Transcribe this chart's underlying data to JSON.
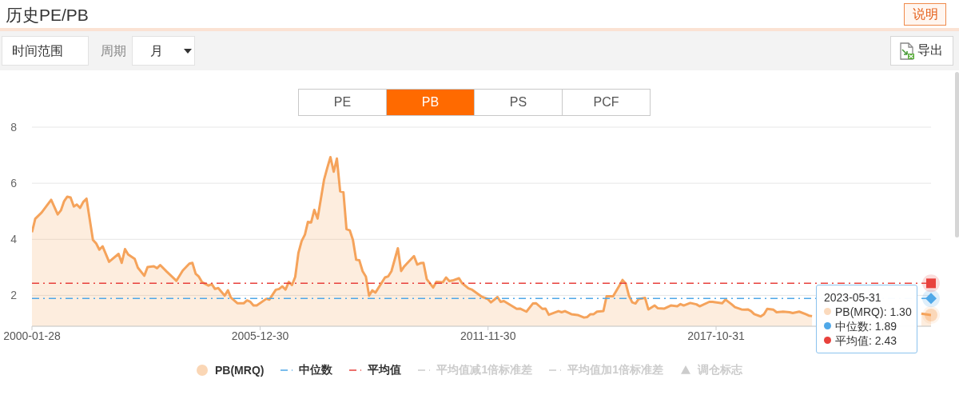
{
  "chart_data": {
    "type": "area",
    "title": "历史PE/PB",
    "series": [
      {
        "name": "PB(MRQ)",
        "color": "#f5a35b",
        "x": [
          "2000-01-28",
          "2000-02-28",
          "2000-03-28",
          "2000-04-28",
          "2000-07-28",
          "2000-09-28",
          "2000-10-28",
          "2000-11-28",
          "2000-12-28",
          "2001-01-28",
          "2001-02-28",
          "2001-03-28",
          "2001-04-28",
          "2001-05-28",
          "2001-06-28",
          "2001-08-28",
          "2001-09-28",
          "2001-10-28",
          "2001-11-28",
          "2002-01-28",
          "2002-04-28",
          "2002-05-28",
          "2002-06-28",
          "2002-07-28",
          "2002-09-28",
          "2002-10-28",
          "2002-12-28",
          "2003-01-28",
          "2003-03-28",
          "2003-04-28",
          "2003-05-28",
          "2003-07-28",
          "2003-10-28",
          "2003-12-28",
          "2004-02-28",
          "2004-03-28",
          "2004-04-28",
          "2004-05-28",
          "2004-06-28",
          "2004-08-28",
          "2004-09-28",
          "2004-10-28",
          "2004-11-28",
          "2005-01-28",
          "2005-02-28",
          "2005-03-28",
          "2005-05-28",
          "2005-07-28",
          "2005-08-28",
          "2005-09-28",
          "2005-10-28",
          "2005-11-28",
          "2006-02-28",
          "2006-03-28",
          "2006-05-28",
          "2006-06-28",
          "2006-07-28",
          "2006-08-28",
          "2006-09-28",
          "2006-10-28",
          "2006-11-28",
          "2006-12-28",
          "2007-01-28",
          "2007-02-28",
          "2007-03-28",
          "2007-04-28",
          "2007-05-28",
          "2007-06-28",
          "2007-08-28",
          "2007-09-28",
          "2007-10-28",
          "2007-11-28",
          "2007-12-28",
          "2008-01-28",
          "2008-02-28",
          "2008-03-28",
          "2008-04-28",
          "2008-05-28",
          "2008-06-28",
          "2008-07-28",
          "2008-08-28",
          "2008-09-28",
          "2008-10-28",
          "2008-11-28",
          "2008-12-28",
          "2009-03-28",
          "2009-04-28",
          "2009-05-28",
          "2009-07-28",
          "2009-08-28",
          "2009-09-28",
          "2009-10-28",
          "2009-12-28",
          "2010-01-28",
          "2010-02-28",
          "2010-03-28",
          "2010-04-28",
          "2010-06-28",
          "2010-07-28",
          "2010-09-28",
          "2010-10-28",
          "2010-11-28",
          "2010-12-28",
          "2011-02-28",
          "2011-03-28",
          "2011-05-28",
          "2011-06-28",
          "2011-09-28",
          "2011-11-28",
          "2011-12-28",
          "2012-02-28",
          "2012-03-28",
          "2012-04-28",
          "2012-08-28",
          "2012-09-28",
          "2012-11-28",
          "2013-01-28",
          "2013-02-28",
          "2013-04-28",
          "2013-05-28",
          "2013-06-28",
          "2013-09-28",
          "2013-10-28",
          "2013-11-28",
          "2014-01-28",
          "2014-03-28",
          "2014-05-28",
          "2014-06-28",
          "2014-07-28",
          "2014-08-28",
          "2014-09-28",
          "2014-11-28",
          "2014-12-28",
          "2015-02-28",
          "2015-04-28",
          "2015-05-28",
          "2015-06-28",
          "2015-07-28",
          "2015-08-28",
          "2015-09-28",
          "2015-10-28",
          "2015-12-28",
          "2016-01-28",
          "2016-03-28",
          "2016-04-28",
          "2016-06-28",
          "2016-08-28",
          "2016-10-28",
          "2016-11-28",
          "2016-12-28",
          "2017-02-28",
          "2017-04-28",
          "2017-05-28",
          "2017-08-28",
          "2017-09-28",
          "2017-12-28",
          "2018-01-28",
          "2018-03-28",
          "2018-04-28",
          "2018-06-28",
          "2018-07-28",
          "2018-08-28",
          "2018-09-28",
          "2018-10-28",
          "2018-12-28",
          "2019-01-28",
          "2019-02-28",
          "2019-04-28",
          "2019-05-28",
          "2019-07-28",
          "2019-09-28",
          "2019-10-28",
          "2019-12-28",
          "2020-02-28",
          "2020-03-28",
          "2020-04-28",
          "2021-09-28",
          "2023-02-28",
          "2023-05-31"
        ],
        "values": [
          4.25,
          4.73,
          4.84,
          4.95,
          5.41,
          4.89,
          5.03,
          5.36,
          5.52,
          5.49,
          5.17,
          5.24,
          5.12,
          5.33,
          5.45,
          3.98,
          3.85,
          3.63,
          3.75,
          3.2,
          3.48,
          3.16,
          3.65,
          3.46,
          3.3,
          2.99,
          2.7,
          3.01,
          3.04,
          2.97,
          3.08,
          2.85,
          2.52,
          2.89,
          3.13,
          3.16,
          2.77,
          2.67,
          2.47,
          2.35,
          2.4,
          2.23,
          2.26,
          1.99,
          2.18,
          1.92,
          1.72,
          1.72,
          1.82,
          1.77,
          1.64,
          1.64,
          1.88,
          1.85,
          2.2,
          2.23,
          2.32,
          2.21,
          2.48,
          2.37,
          2.66,
          3.51,
          3.94,
          4.17,
          4.62,
          4.6,
          5.05,
          4.74,
          6.12,
          6.55,
          6.93,
          6.41,
          6.88,
          5.71,
          5.68,
          4.36,
          4.32,
          3.98,
          3.27,
          3.25,
          2.86,
          2.67,
          1.99,
          2.18,
          2.1,
          2.64,
          2.68,
          2.86,
          3.68,
          2.87,
          3.04,
          3.16,
          3.4,
          3.1,
          3.15,
          3.16,
          2.58,
          2.28,
          2.48,
          2.47,
          2.64,
          2.51,
          2.53,
          2.61,
          2.44,
          2.25,
          2.21,
          1.96,
          1.87,
          1.75,
          1.94,
          1.77,
          1.8,
          1.52,
          1.53,
          1.42,
          1.71,
          1.72,
          1.52,
          1.53,
          1.31,
          1.44,
          1.4,
          1.44,
          1.33,
          1.3,
          1.21,
          1.23,
          1.33,
          1.33,
          1.42,
          1.44,
          1.97,
          1.97,
          2.35,
          2.55,
          2.42,
          1.99,
          1.75,
          1.71,
          1.87,
          1.91,
          1.5,
          1.64,
          1.54,
          1.53,
          1.64,
          1.61,
          1.69,
          1.64,
          1.73,
          1.68,
          1.61,
          1.77,
          1.77,
          1.72,
          1.85,
          1.68,
          1.58,
          1.5,
          1.49,
          1.5,
          1.44,
          1.33,
          1.25,
          1.33,
          1.52,
          1.49,
          1.4,
          1.42,
          1.4,
          1.37,
          1.42,
          1.33,
          1.28,
          1.26,
          null,
          1.35,
          1.3
        ]
      },
      {
        "name": "平均值减1倍标准差",
        "type": "line",
        "line_style": "dashed",
        "color": "#cccccc"
      },
      {
        "name": "平均值加1倍标准差",
        "type": "line",
        "line_style": "dashed",
        "color": "#cccccc"
      },
      {
        "name": "调仓标志",
        "type": "scatter",
        "marker": "triangle",
        "color": "#cccccc"
      }
    ],
    "xlim": [
      "2000-01-28",
      "2023-05-31"
    ],
    "xticks": [
      "2000-01-28",
      "2005-12-30",
      "2011-11-30",
      "2017-10-31"
    ],
    "ylim": [
      0.9,
      8
    ],
    "yticks": [
      2,
      4,
      6,
      8
    ],
    "grid": "y",
    "legend": "bottom",
    "ref_lines": [
      {
        "axis": "y",
        "value": 1.89,
        "label": "中位数",
        "color": "#4fa8e8",
        "line_style": "dashed"
      },
      {
        "axis": "y",
        "value": 2.43,
        "label": "平均值",
        "color": "#e8413c",
        "line_style": "dashed"
      }
    ],
    "annotations": [
      "说明",
      "时间范围",
      "周期",
      "月",
      "导出",
      "PE",
      "PB",
      "PS",
      "PCF",
      {
        "text": "2023-05-31\nPB(MRQ): 1.30\n中位数: 1.89\n平均值: 2.43",
        "x": "2023-05-31",
        "y": 1.3
      }
    ]
  }
}
